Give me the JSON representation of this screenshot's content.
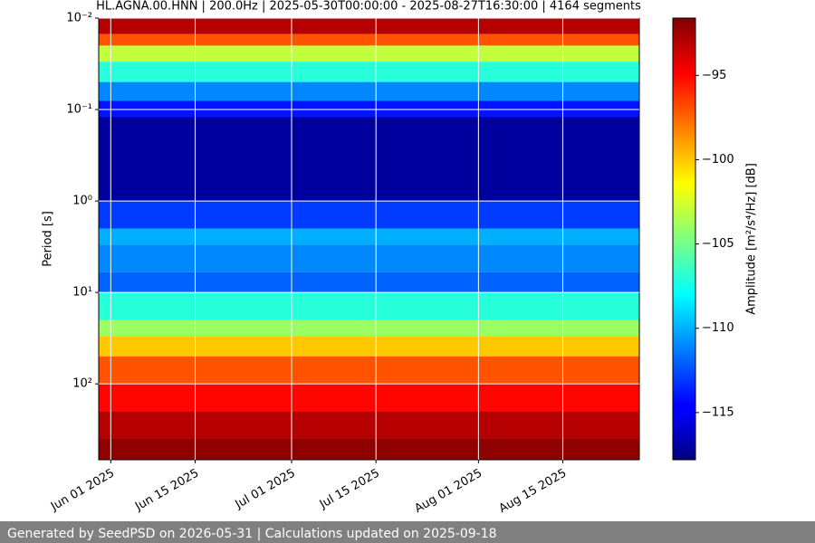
{
  "chart_data": {
    "type": "spectrogram",
    "title": "HL.AGNA.00.HNN | 200.0Hz | 2025-05-30T00:00:00 - 2025-08-27T16:30:00 | 4164 segments",
    "y_label": "Period [s]",
    "y_log": true,
    "y_inverted": true,
    "xlim": [
      "2025-05-30T00:00:00",
      "2025-08-27T16:30:00"
    ],
    "xticks": [
      {
        "value": "2025-06-01T00:00:00",
        "label": "Jun 01 2025"
      },
      {
        "value": "2025-06-15T00:00:00",
        "label": "Jun 15 2025"
      },
      {
        "value": "2025-07-01T00:00:00",
        "label": "Jul 01 2025"
      },
      {
        "value": "2025-07-15T00:00:00",
        "label": "Jul 15 2025"
      },
      {
        "value": "2025-08-01T00:00:00",
        "label": "Aug 01 2025"
      },
      {
        "value": "2025-08-15T00:00:00",
        "label": "Aug 15 2025"
      }
    ],
    "ylim": [
      0.01,
      676
    ],
    "yticks": [
      {
        "value": 0.01,
        "label": "10⁻²"
      },
      {
        "value": 0.1,
        "label": "10⁻¹"
      },
      {
        "value": 1,
        "label": "10⁰"
      },
      {
        "value": 10,
        "label": "10¹"
      },
      {
        "value": 100,
        "label": "10²"
      }
    ],
    "grid": true,
    "grid_color": "#ffffff",
    "colormap": "jet",
    "period_bins": [
      0.01,
      0.015,
      0.02,
      0.03,
      0.05,
      0.08,
      0.12,
      1,
      2,
      3,
      6,
      10,
      20,
      30,
      50,
      100,
      200,
      400,
      676
    ],
    "values": [
      -93,
      -97,
      -103,
      -107,
      -111,
      -114,
      -117,
      -113,
      -110,
      -111,
      -112,
      -107,
      -104,
      -100,
      -97,
      -95,
      -93,
      -92
    ],
    "colorbar_label": "Amplitude [m²/s⁴/Hz] [dB]",
    "clim": [
      -117.8,
      -91.6
    ],
    "cticks": [
      {
        "value": -95,
        "label": "−95"
      },
      {
        "value": -100,
        "label": "−100"
      },
      {
        "value": -105,
        "label": "−105"
      },
      {
        "value": -110,
        "label": "−110"
      },
      {
        "value": -115,
        "label": "−115"
      }
    ]
  },
  "footer": "Generated by SeedPSD on 2026-05-31 | Calculations updated on 2025-09-18"
}
